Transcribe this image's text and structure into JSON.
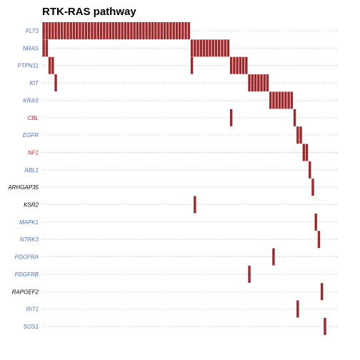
{
  "chart_data": {
    "type": "oncoprint",
    "title": "RTK-RAS pathway",
    "n_samples": 98,
    "mutation_color": "#a0262a",
    "genes": [
      {
        "name": "FLT3",
        "color": "#4a6fc4",
        "samples": [
          [
            0,
            48
          ]
        ]
      },
      {
        "name": "NRAS",
        "color": "#4a6fc4",
        "samples": [
          [
            0,
            1
          ],
          [
            49,
            61
          ]
        ]
      },
      {
        "name": "PTPN11",
        "color": "#4a6fc4",
        "samples": [
          [
            2,
            3
          ],
          [
            49,
            49
          ],
          [
            62,
            67
          ]
        ]
      },
      {
        "name": "KIT",
        "color": "#4a6fc4",
        "samples": [
          [
            4,
            4
          ],
          [
            68,
            74
          ]
        ]
      },
      {
        "name": "KRAS",
        "color": "#4a6fc4",
        "samples": [
          [
            75,
            82
          ]
        ]
      },
      {
        "name": "CBL",
        "color": "#d42020",
        "samples": [
          [
            62,
            62
          ],
          [
            83,
            83
          ]
        ]
      },
      {
        "name": "EGFR",
        "color": "#4a6fc4",
        "samples": [
          [
            84,
            85
          ]
        ]
      },
      {
        "name": "NF1",
        "color": "#d42020",
        "samples": [
          [
            86,
            87
          ]
        ]
      },
      {
        "name": "ABL1",
        "color": "#4a6fc4",
        "samples": [
          [
            88,
            88
          ]
        ]
      },
      {
        "name": "ARHGAP35",
        "color": "#000000",
        "samples": [
          [
            89,
            89
          ]
        ]
      },
      {
        "name": "KSR2",
        "color": "#000000",
        "samples": [
          [
            50,
            50
          ]
        ]
      },
      {
        "name": "MAPK1",
        "color": "#4a6fc4",
        "samples": [
          [
            90,
            90
          ]
        ]
      },
      {
        "name": "NTRK3",
        "color": "#4a6fc4",
        "samples": [
          [
            91,
            91
          ]
        ]
      },
      {
        "name": "PDGFRA",
        "color": "#4a6fc4",
        "samples": [
          [
            76,
            76
          ]
        ]
      },
      {
        "name": "PDGFRB",
        "color": "#4a6fc4",
        "samples": [
          [
            68,
            68
          ]
        ]
      },
      {
        "name": "RAPGEF2",
        "color": "#000000",
        "samples": [
          [
            92,
            92
          ]
        ]
      },
      {
        "name": "RIT1",
        "color": "#4a6fc4",
        "samples": [
          [
            84,
            84
          ]
        ]
      },
      {
        "name": "SOS1",
        "color": "#4a6fc4",
        "samples": [
          [
            93,
            93
          ]
        ]
      }
    ]
  }
}
